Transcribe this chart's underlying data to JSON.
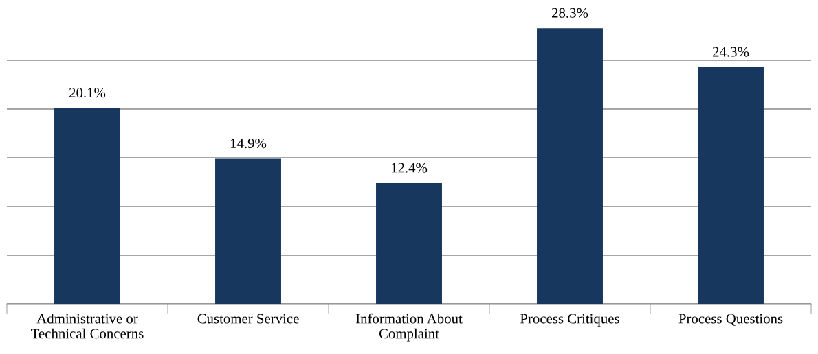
{
  "chart_data": {
    "type": "bar",
    "categories": [
      "Administrative or\nTechnical Concerns",
      "Customer Service",
      "Information About\nComplaint",
      "Process Critiques",
      "Process Questions"
    ],
    "values": [
      20.1,
      14.9,
      12.4,
      28.3,
      24.3
    ],
    "value_labels": [
      "20.1%",
      "14.9%",
      "12.4%",
      "28.3%",
      "24.3%"
    ],
    "color": "#17375e",
    "ylim": [
      0,
      30
    ],
    "yticks": [
      {
        "value": 0,
        "label": null
      },
      {
        "value": 5,
        "label": null
      },
      {
        "value": 10,
        "label": null
      },
      {
        "value": 15,
        "label": null
      },
      {
        "value": 20,
        "label": null
      },
      {
        "value": 25,
        "label": null
      },
      {
        "value": 30,
        "label": null
      }
    ],
    "grid": "y",
    "tick_labels": "x"
  }
}
